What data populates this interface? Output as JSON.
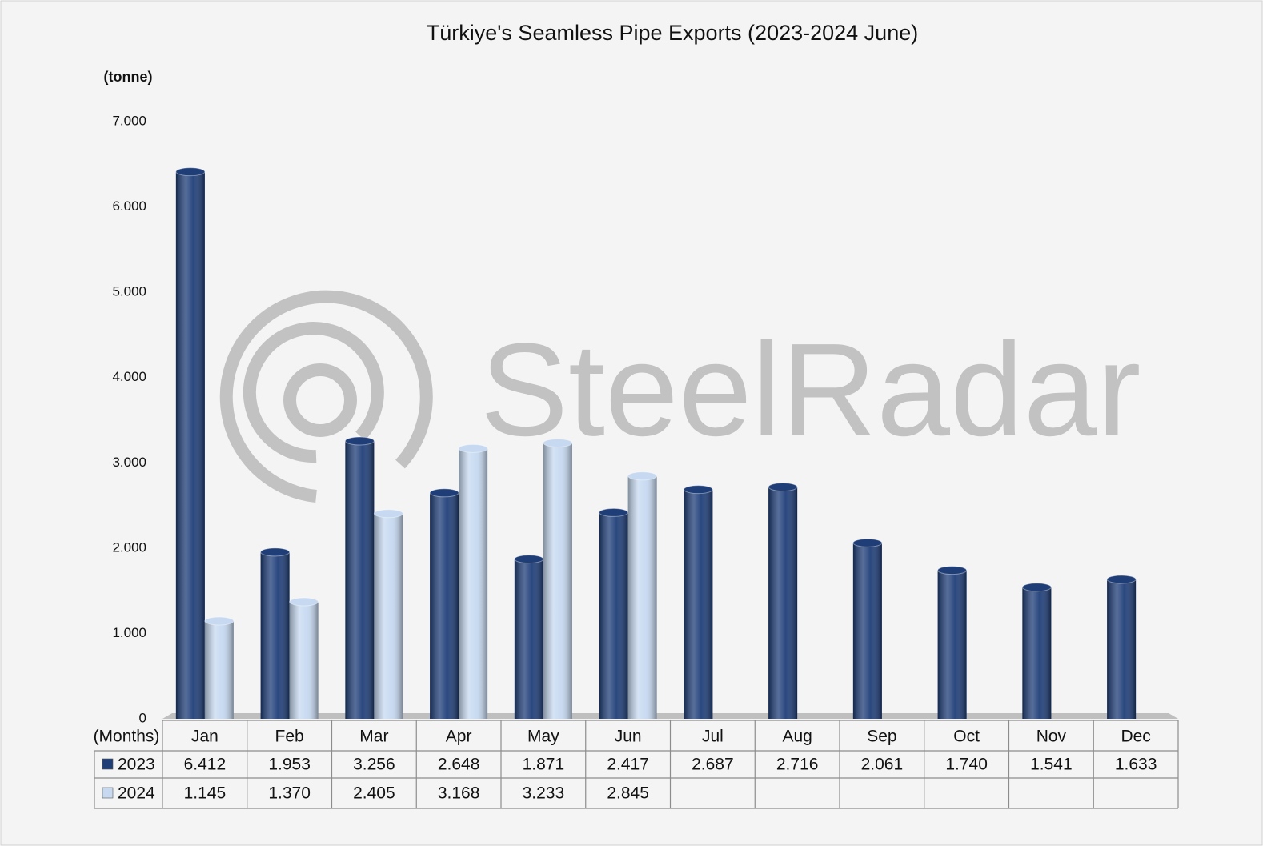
{
  "chart_data": {
    "type": "bar",
    "title": "Türkiye's Seamless Pipe Exports (2023-2024 June)",
    "y_label": "(tonne)",
    "x_label": "(Months)",
    "watermark": "SteelRadar",
    "categories": [
      "Jan",
      "Feb",
      "Mar",
      "Apr",
      "May",
      "Jun",
      "Jul",
      "Aug",
      "Sep",
      "Oct",
      "Nov",
      "Dec"
    ],
    "series": [
      {
        "name": "2023",
        "color": "#1f3e78",
        "values": [
          6412,
          1953,
          3256,
          2648,
          1871,
          2417,
          2687,
          2716,
          2061,
          1740,
          1541,
          1633
        ],
        "value_labels": [
          "6.412",
          "1.953",
          "3.256",
          "2.648",
          "1.871",
          "2.417",
          "2.687",
          "2.716",
          "2.061",
          "1.740",
          "1.541",
          "1.633"
        ]
      },
      {
        "name": "2024",
        "color": "#c6d9f1",
        "values": [
          1145,
          1370,
          2405,
          3168,
          3233,
          2845,
          null,
          null,
          null,
          null,
          null,
          null
        ],
        "value_labels": [
          "1.145",
          "1.370",
          "2.405",
          "3.168",
          "3.233",
          "2.845",
          null,
          null,
          null,
          null,
          null,
          null
        ]
      }
    ],
    "ylim": [
      0,
      7000
    ],
    "yticks": [
      0,
      {
        "value": 1000,
        "label": "1.000"
      },
      {
        "value": 2000,
        "label": "2.000"
      },
      {
        "value": 3000,
        "label": "3.000"
      },
      {
        "value": 4000,
        "label": "4.000"
      },
      {
        "value": 5000,
        "label": "5.000"
      },
      {
        "value": 6000,
        "label": "6.000"
      },
      {
        "value": 7000,
        "label": "7.000"
      }
    ],
    "grid": false
  }
}
